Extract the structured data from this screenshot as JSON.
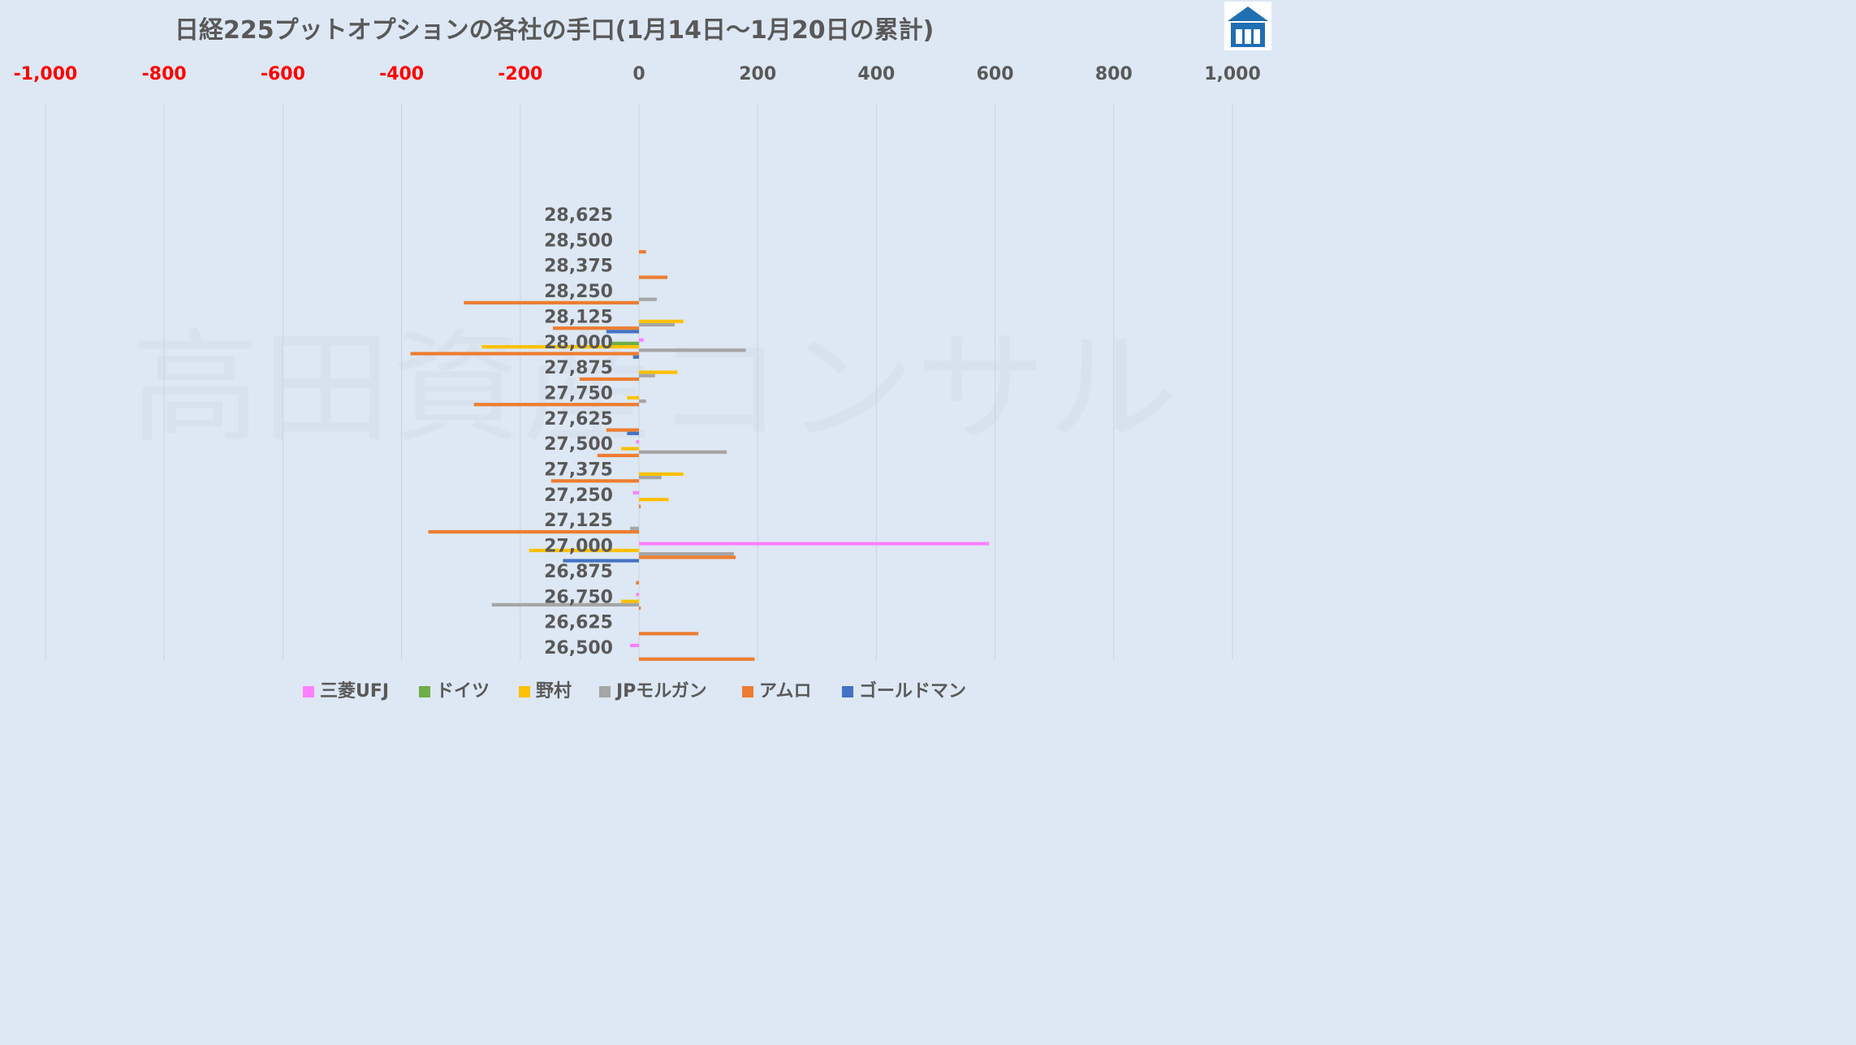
{
  "chart_data": {
    "type": "bar",
    "orientation": "horizontal",
    "title": "日経225プットオプションの各社の手口(1月14日〜1月20日の累計)",
    "watermark": "高田資産コンサル",
    "xlim": [
      -1000,
      1000
    ],
    "x_ticks": [
      "-1,000",
      "-800",
      "-600",
      "-400",
      "-200",
      "0",
      "200",
      "400",
      "600",
      "800",
      "1,000"
    ],
    "x_tick_values": [
      -1000,
      -800,
      -600,
      -400,
      -200,
      0,
      200,
      400,
      600,
      800,
      1000
    ],
    "negative_tick_color": "#ff0000",
    "positive_tick_color": "#595959",
    "grid": true,
    "legend_position": "bottom",
    "categories": [
      "28,625",
      "28,500",
      "28,375",
      "28,250",
      "28,125",
      "28,000",
      "27,875",
      "27,750",
      "27,625",
      "27,500",
      "27,375",
      "27,250",
      "27,125",
      "27,000",
      "26,875",
      "26,750",
      "26,625",
      "26,500"
    ],
    "series": [
      {
        "name": "三菱UFJ",
        "color": "#ff80ff",
        "values": [
          0,
          0,
          0,
          0,
          0,
          8,
          0,
          0,
          0,
          -5,
          0,
          -10,
          0,
          590,
          0,
          -5,
          0,
          -15
        ]
      },
      {
        "name": "ドイツ",
        "color": "#70ad47",
        "values": [
          0,
          0,
          0,
          0,
          0,
          -50,
          0,
          0,
          0,
          0,
          0,
          0,
          0,
          0,
          0,
          0,
          0,
          0
        ]
      },
      {
        "name": "野村",
        "color": "#ffc000",
        "values": [
          0,
          0,
          0,
          0,
          75,
          -265,
          65,
          -20,
          0,
          -30,
          75,
          50,
          0,
          -185,
          0,
          -30,
          0,
          0
        ]
      },
      {
        "name": "JPモルガン",
        "color": "#a5a5a5",
        "values": [
          0,
          0,
          0,
          30,
          60,
          180,
          27,
          12,
          0,
          148,
          38,
          0,
          -15,
          160,
          0,
          -248,
          0,
          0
        ]
      },
      {
        "name": "アムロ",
        "color": "#ed7d31",
        "values": [
          0,
          12,
          48,
          -295,
          -145,
          -385,
          -100,
          -278,
          -55,
          -70,
          -148,
          3,
          -355,
          163,
          -5,
          3,
          100,
          195
        ]
      },
      {
        "name": "ゴールドマン",
        "color": "#4472c4",
        "values": [
          0,
          0,
          0,
          0,
          -55,
          -10,
          0,
          0,
          -20,
          0,
          0,
          0,
          0,
          -128,
          0,
          0,
          0,
          0
        ]
      }
    ]
  }
}
